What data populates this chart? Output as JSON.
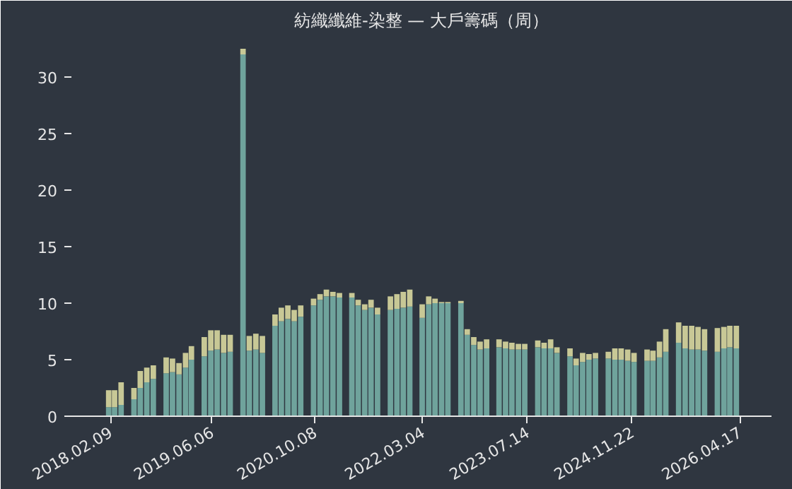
{
  "chart_data": {
    "type": "bar",
    "title": "紡織纖維-染整 — 大戶籌碼（周）",
    "stacked": true,
    "x": [
      "2018-02",
      "2018-03",
      "2018-04",
      "2018-05",
      "2018-06",
      "2018-07",
      "2018-08",
      "2018-09",
      "2018-10",
      "2018-11",
      "2018-12",
      "2019-01",
      "2019-02",
      "2019-03",
      "2019-04",
      "2019-05",
      "2019-06",
      "2019-07",
      "2019-08",
      "2019-09",
      "2019-10",
      "2019-11",
      "2019-12",
      "2020-01",
      "2020-02",
      "2020-03",
      "2020-04",
      "2020-05",
      "2020-06",
      "2020-07",
      "2020-08",
      "2020-09",
      "2020-10",
      "2020-11",
      "2020-12",
      "2021-01",
      "2021-02",
      "2021-03",
      "2021-04",
      "2021-05",
      "2021-06",
      "2021-07",
      "2021-08",
      "2021-09",
      "2021-10",
      "2021-11",
      "2021-12",
      "2022-01",
      "2022-02",
      "2022-03",
      "2022-04",
      "2022-05",
      "2022-06",
      "2022-07",
      "2022-08",
      "2022-09",
      "2022-10",
      "2022-11",
      "2022-12",
      "2023-01",
      "2023-02",
      "2023-03",
      "2023-04",
      "2023-05",
      "2023-06",
      "2023-07",
      "2023-08",
      "2023-09",
      "2023-10",
      "2023-11",
      "2023-12",
      "2024-01",
      "2024-02",
      "2024-03",
      "2024-04",
      "2024-05",
      "2024-06",
      "2024-07",
      "2024-08",
      "2024-09",
      "2024-10",
      "2024-11",
      "2024-12",
      "2025-01",
      "2025-02",
      "2025-03",
      "2025-04",
      "2025-05",
      "2025-06",
      "2025-07",
      "2025-08",
      "2025-09",
      "2025-10",
      "2025-11",
      "2025-12",
      "2026-01",
      "2026-02",
      "2026-03",
      "2026-04"
    ],
    "series": [
      {
        "color": "#6fa39c",
        "values": [
          0.8,
          0.8,
          1.0,
          null,
          1.5,
          2.5,
          3.0,
          3.3,
          null,
          3.8,
          3.9,
          3.7,
          4.3,
          5.0,
          null,
          5.3,
          5.8,
          5.9,
          5.6,
          5.7,
          null,
          32.0,
          5.8,
          5.9,
          5.6,
          null,
          8.0,
          8.4,
          8.6,
          8.4,
          8.8,
          null,
          9.8,
          10.3,
          10.6,
          10.6,
          10.5,
          null,
          10.5,
          9.8,
          9.4,
          9.6,
          9.0,
          null,
          9.4,
          9.5,
          9.6,
          9.7,
          null,
          8.7,
          9.9,
          10.0,
          10.0,
          10.0,
          null,
          10.0,
          7.2,
          6.3,
          5.9,
          6.0,
          null,
          6.1,
          6.0,
          5.9,
          5.9,
          5.9,
          null,
          6.1,
          6.0,
          6.0,
          5.6,
          null,
          5.3,
          4.5,
          4.8,
          5.0,
          5.1,
          null,
          5.1,
          5.0,
          5.0,
          4.9,
          4.8,
          null,
          4.9,
          4.9,
          5.2,
          5.7,
          null,
          6.5,
          6.0,
          5.9,
          5.9,
          5.8,
          null,
          5.7,
          6.0,
          6.1,
          6.0
        ]
      },
      {
        "color": "#c8c896",
        "values": [
          1.5,
          1.5,
          2.0,
          null,
          1.0,
          1.5,
          1.3,
          1.2,
          null,
          1.4,
          1.2,
          1.0,
          1.3,
          1.2,
          null,
          1.7,
          1.8,
          1.7,
          1.6,
          1.5,
          null,
          0.5,
          1.3,
          1.4,
          1.5,
          null,
          1.0,
          1.2,
          1.2,
          1.0,
          1.0,
          null,
          0.6,
          0.5,
          0.6,
          0.4,
          0.4,
          null,
          0.4,
          0.5,
          0.5,
          0.7,
          0.6,
          null,
          1.2,
          1.3,
          1.4,
          1.5,
          null,
          1.2,
          0.7,
          0.4,
          0.1,
          0.1,
          null,
          0.2,
          0.5,
          0.7,
          0.7,
          0.8,
          null,
          0.7,
          0.6,
          0.6,
          0.5,
          0.5,
          null,
          0.6,
          0.5,
          0.8,
          0.5,
          null,
          0.7,
          0.6,
          0.8,
          0.5,
          0.5,
          null,
          0.6,
          1.0,
          1.0,
          1.0,
          0.8,
          null,
          1.0,
          0.9,
          1.4,
          2.0,
          null,
          1.8,
          2.0,
          2.1,
          2.0,
          1.9,
          null,
          2.1,
          1.9,
          1.9,
          2.0
        ]
      }
    ],
    "xlim": [
      "2017-08-08",
      "2026-09-15"
    ],
    "xticks": [
      {
        "value": "2018-02-09",
        "label": "2018.02.09"
      },
      {
        "value": "2019-06-06",
        "label": "2019.06.06"
      },
      {
        "value": "2020-10-08",
        "label": "2020.10.08"
      },
      {
        "value": "2022-03-04",
        "label": "2022.03.04"
      },
      {
        "value": "2023-07-14",
        "label": "2023.07.14"
      },
      {
        "value": "2024-11-22",
        "label": "2024.11.22"
      },
      {
        "value": "2026-04-17",
        "label": "2026.04.17"
      }
    ],
    "ylim": [
      0,
      33.5
    ],
    "yticks": [
      0,
      5,
      10,
      15,
      20,
      25,
      30
    ]
  }
}
